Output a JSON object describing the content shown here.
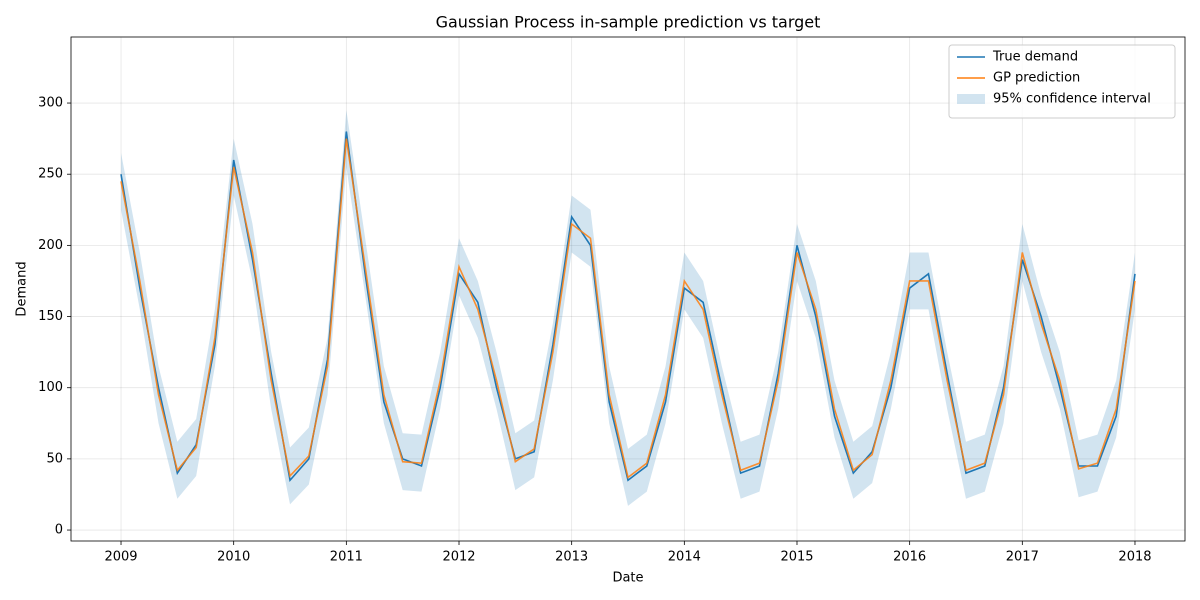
{
  "chart_data": {
    "type": "line",
    "title": "Gaussian Process in-sample prediction vs target",
    "x_label": "Date",
    "y_label": "Demand",
    "x": [
      2009,
      2009.167,
      2009.333,
      2009.5,
      2009.667,
      2009.833,
      2010,
      2010.167,
      2010.333,
      2010.5,
      2010.667,
      2010.833,
      2011,
      2011.167,
      2011.333,
      2011.5,
      2011.667,
      2011.833,
      2012,
      2012.167,
      2012.333,
      2012.5,
      2012.667,
      2012.833,
      2013,
      2013.167,
      2013.333,
      2013.5,
      2013.667,
      2013.833,
      2014,
      2014.167,
      2014.333,
      2014.5,
      2014.667,
      2014.833,
      2015,
      2015.167,
      2015.333,
      2015.5,
      2015.667,
      2015.833,
      2016,
      2016.167,
      2016.333,
      2016.5,
      2016.667,
      2016.833,
      2017,
      2017.167,
      2017.333,
      2017.5,
      2017.667,
      2017.833,
      2018
    ],
    "series": [
      {
        "name": "True demand",
        "color": "#1f77b4",
        "values": [
          250,
          170,
          100,
          40,
          60,
          130,
          260,
          190,
          110,
          35,
          50,
          120,
          280,
          180,
          90,
          50,
          45,
          100,
          180,
          160,
          100,
          50,
          55,
          130,
          220,
          200,
          90,
          35,
          45,
          90,
          170,
          160,
          100,
          40,
          45,
          110,
          200,
          150,
          80,
          40,
          55,
          100,
          170,
          180,
          110,
          40,
          45,
          100,
          190,
          150,
          100,
          45,
          45,
          80,
          180
        ]
      },
      {
        "name": "GP prediction",
        "color": "#ff7f0e",
        "values": [
          245,
          175,
          95,
          42,
          58,
          135,
          255,
          195,
          105,
          38,
          52,
          115,
          275,
          185,
          95,
          48,
          47,
          105,
          185,
          155,
          105,
          48,
          57,
          125,
          215,
          205,
          95,
          37,
          47,
          95,
          175,
          155,
          95,
          42,
          47,
          105,
          195,
          155,
          85,
          42,
          53,
          105,
          175,
          175,
          105,
          42,
          47,
          95,
          195,
          145,
          105,
          43,
          47,
          85,
          175
        ]
      }
    ],
    "confidence_band": {
      "name": "95% confidence interval",
      "color": "#1f77b4",
      "lower": [
        225,
        155,
        75,
        22,
        38,
        115,
        235,
        175,
        85,
        18,
        32,
        95,
        255,
        165,
        75,
        28,
        27,
        85,
        165,
        135,
        85,
        28,
        37,
        105,
        195,
        185,
        75,
        17,
        27,
        75,
        155,
        135,
        75,
        22,
        27,
        85,
        175,
        135,
        65,
        22,
        33,
        85,
        155,
        155,
        85,
        22,
        27,
        75,
        175,
        125,
        85,
        23,
        27,
        65,
        155
      ],
      "upper": [
        265,
        195,
        115,
        62,
        78,
        155,
        275,
        215,
        125,
        58,
        72,
        135,
        295,
        205,
        115,
        68,
        67,
        125,
        205,
        175,
        125,
        68,
        77,
        145,
        235,
        225,
        115,
        57,
        67,
        115,
        195,
        175,
        115,
        62,
        67,
        125,
        215,
        175,
        105,
        62,
        73,
        125,
        195,
        195,
        125,
        62,
        67,
        115,
        215,
        165,
        125,
        63,
        67,
        105,
        195
      ]
    },
    "xlim": [
      2008.556,
      2018.444
    ],
    "ylim": [
      -7.7,
      346.4
    ],
    "xticks": [
      2009,
      2010,
      2011,
      2012,
      2013,
      2014,
      2015,
      2016,
      2017,
      2018
    ],
    "yticks": [
      0,
      50,
      100,
      150,
      200,
      250,
      300
    ],
    "grid": true,
    "legend": "upper-right"
  }
}
